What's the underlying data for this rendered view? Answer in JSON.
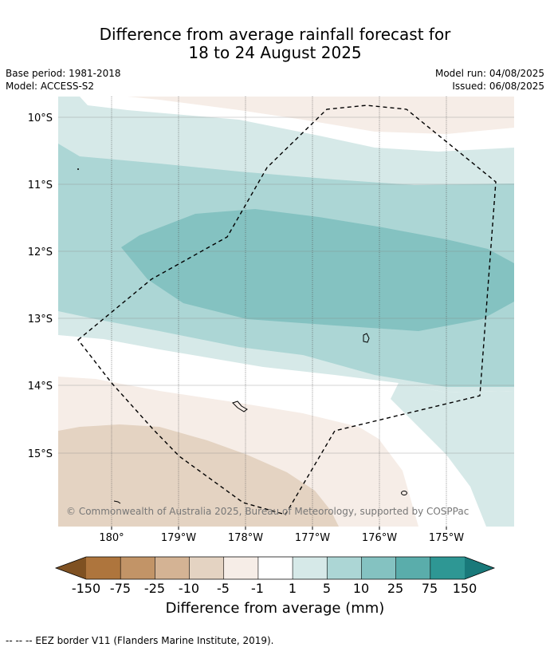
{
  "title": {
    "line1": "Difference from average rainfall forecast for",
    "line2": "18 to 24 August 2025"
  },
  "meta": {
    "base_period": "Base period: 1981-2018",
    "model": "Model: ACCESS-S2",
    "model_run": "Model run: 04/08/2025",
    "issued": "Issued: 06/08/2025"
  },
  "map": {
    "lat_labels": [
      "10°S",
      "11°S",
      "12°S",
      "13°S",
      "14°S",
      "15°S"
    ],
    "lon_labels": [
      "180°",
      "179°W",
      "178°W",
      "177°W",
      "176°W",
      "175°W"
    ],
    "copyright": "© Commonwealth of Australia 2025, Bureau of Meteorology, supported by COSPPac",
    "colors": {
      "dry_5_10": "#f6ede7",
      "dry_10_25": "#e4d3c2",
      "wet_1_5": "#d6e9e8",
      "wet_5_10": "#acd6d5",
      "wet_10_25": "#84c2c1",
      "eez_line": "#000000"
    }
  },
  "colorbar": {
    "ticks": [
      "-150",
      "-75",
      "-25",
      "-10",
      "-5",
      "-1",
      "1",
      "5",
      "10",
      "25",
      "75",
      "150"
    ],
    "colors": [
      "#7f5122",
      "#ae753d",
      "#c29467",
      "#d4b394",
      "#e4d3c2",
      "#f6ede7",
      "#ffffff",
      "#d6e9e8",
      "#acd6d5",
      "#84c2c1",
      "#5aadab",
      "#2e9794",
      "#19797a"
    ],
    "title": "Difference from average (mm)"
  },
  "footer": "-- -- -- EEZ border V11 (Flanders Marine Institute, 2019)."
}
